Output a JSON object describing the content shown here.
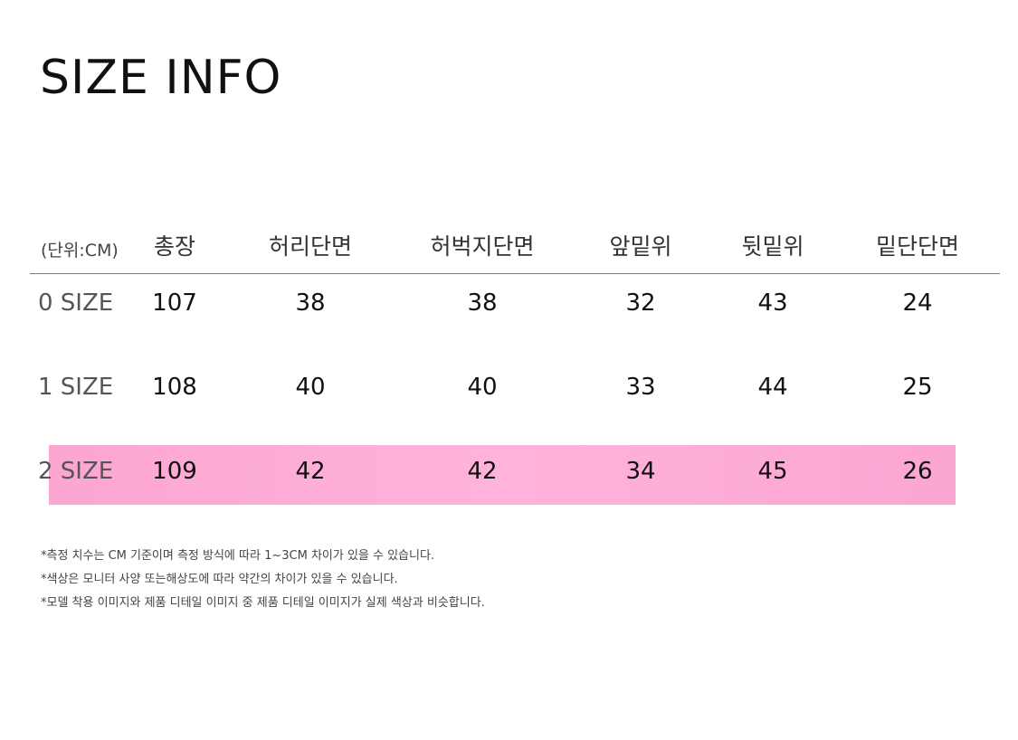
{
  "header": {
    "title": "SIZE INFO"
  },
  "table": {
    "columns": [
      "(단위:CM)",
      "총장",
      "허리단면",
      "허벅지단면",
      "앞밑위",
      "뒷밑위",
      "밑단단면"
    ],
    "rows": [
      [
        "0 SIZE",
        "107",
        "38",
        "38",
        "32",
        "43",
        "24"
      ],
      [
        "1 SIZE",
        "108",
        "40",
        "40",
        "33",
        "44",
        "25"
      ],
      [
        "2 SIZE",
        "109",
        "42",
        "42",
        "34",
        "45",
        "26"
      ]
    ]
  },
  "notes": [
    "*측정 치수는 CM 기준이며 측정 방식에 따라 1~3CM 차이가 있을 수 있습니다.",
    "*색상은 모니터 사양 또는해상도에 따라 약간의 차이가 있을 수 있습니다.",
    "*모델 착용 이미지와 제품 디테일 이미지 중 제품 디테일 이미지가 실제 색상과 비슷합니다."
  ]
}
